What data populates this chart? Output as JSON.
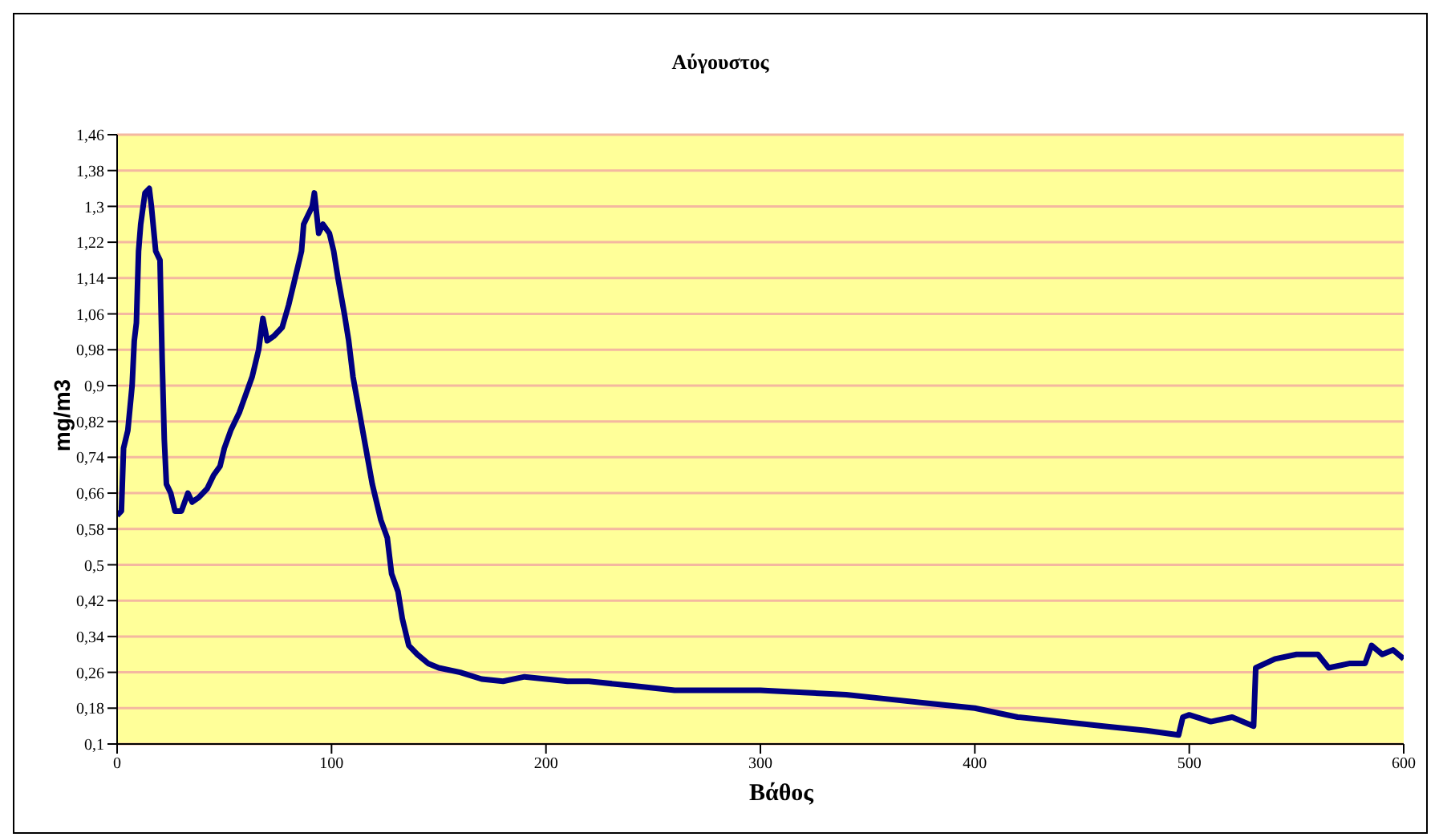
{
  "chart_data": {
    "type": "line",
    "title": "Αύγουστος",
    "xlabel": "Βάθος",
    "ylabel": "mg/m3",
    "x": [
      0,
      2,
      3,
      5,
      7,
      8,
      9,
      10,
      11,
      13,
      15,
      16,
      18,
      20,
      21,
      22,
      23,
      25,
      27,
      30,
      33,
      35,
      38,
      42,
      45,
      48,
      50,
      53,
      57,
      60,
      63,
      66,
      68,
      70,
      73,
      77,
      80,
      83,
      86,
      87,
      89,
      91,
      92,
      94,
      96,
      99,
      101,
      103,
      106,
      108,
      110,
      113,
      116,
      119,
      123,
      126,
      128,
      131,
      133,
      136,
      140,
      145,
      150,
      160,
      170,
      180,
      190,
      200,
      210,
      220,
      240,
      260,
      280,
      300,
      320,
      340,
      360,
      380,
      400,
      420,
      440,
      460,
      480,
      495,
      497,
      500,
      510,
      520,
      530,
      531,
      540,
      550,
      560,
      565,
      575,
      582,
      585,
      590,
      595,
      600
    ],
    "series": [
      {
        "color": "#000080",
        "values": [
          0.61,
          0.62,
          0.76,
          0.8,
          0.9,
          1.0,
          1.04,
          1.2,
          1.26,
          1.33,
          1.34,
          1.3,
          1.2,
          1.18,
          0.96,
          0.78,
          0.68,
          0.66,
          0.62,
          0.62,
          0.66,
          0.64,
          0.65,
          0.67,
          0.7,
          0.72,
          0.76,
          0.8,
          0.84,
          0.88,
          0.92,
          0.98,
          1.05,
          1.0,
          1.01,
          1.03,
          1.08,
          1.14,
          1.2,
          1.26,
          1.28,
          1.3,
          1.33,
          1.24,
          1.26,
          1.24,
          1.2,
          1.14,
          1.06,
          1.0,
          0.92,
          0.84,
          0.76,
          0.68,
          0.6,
          0.56,
          0.48,
          0.44,
          0.38,
          0.32,
          0.3,
          0.28,
          0.27,
          0.26,
          0.245,
          0.24,
          0.25,
          0.245,
          0.24,
          0.24,
          0.23,
          0.22,
          0.22,
          0.22,
          0.215,
          0.21,
          0.2,
          0.19,
          0.18,
          0.16,
          0.15,
          0.14,
          0.13,
          0.12,
          0.16,
          0.165,
          0.15,
          0.16,
          0.14,
          0.27,
          0.29,
          0.3,
          0.3,
          0.27,
          0.28,
          0.28,
          0.32,
          0.3,
          0.31,
          0.29
        ]
      }
    ],
    "xlim": [
      0,
      600
    ],
    "xticks": [
      0,
      100,
      200,
      300,
      400,
      500,
      600
    ],
    "ylim": [
      0.1,
      1.46
    ],
    "yticks": [
      {
        "value": 0.1,
        "label": "0,1"
      },
      {
        "value": 0.18,
        "label": "0,18"
      },
      {
        "value": 0.26,
        "label": "0,26"
      },
      {
        "value": 0.34,
        "label": "0,34"
      },
      {
        "value": 0.42,
        "label": "0,42"
      },
      {
        "value": 0.5,
        "label": "0,5"
      },
      {
        "value": 0.58,
        "label": "0,58"
      },
      {
        "value": 0.66,
        "label": "0,66"
      },
      {
        "value": 0.74,
        "label": "0,74"
      },
      {
        "value": 0.82,
        "label": "0,82"
      },
      {
        "value": 0.9,
        "label": "0,9"
      },
      {
        "value": 0.98,
        "label": "0,98"
      },
      {
        "value": 1.06,
        "label": "1,06"
      },
      {
        "value": 1.14,
        "label": "1,14"
      },
      {
        "value": 1.22,
        "label": "1,22"
      },
      {
        "value": 1.3,
        "label": "1,3"
      },
      {
        "value": 1.38,
        "label": "1,38"
      },
      {
        "value": 1.46,
        "label": "1,46"
      }
    ],
    "grid": "y",
    "legend": false,
    "marker": "none",
    "line_style": "solid"
  }
}
